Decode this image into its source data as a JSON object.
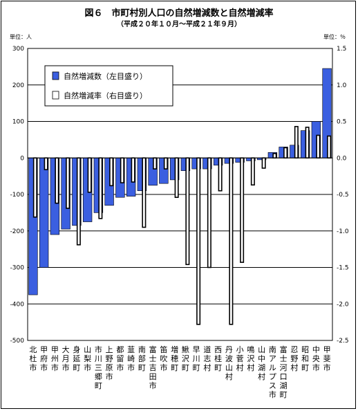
{
  "chart_data": {
    "type": "bar",
    "title": "図６　市町村別人口の自然増減数と自然増減率",
    "subtitle": "（平成２０年１０月～平成２１年９月）",
    "left_unit": "単位：人",
    "right_unit": "単位：％",
    "categories": [
      "北杜市",
      "甲府市",
      "甲州市",
      "大月市",
      "身延町",
      "山梨市",
      "市川三郷町",
      "上野原市",
      "都留市",
      "韮崎市",
      "南部町",
      "富士吉田市",
      "笛吹市",
      "増穂町",
      "鰍沢町",
      "早川町",
      "道志村",
      "西桂町",
      "丹波山村",
      "小菅村",
      "鳴沢村",
      "山中湖村",
      "南アルプス市",
      "富士河口湖町",
      "忍野村",
      "昭和町",
      "中央市",
      "甲斐市"
    ],
    "y_left": {
      "min": -500,
      "max": 300,
      "step": 100,
      "ticks": [
        "300",
        "200",
        "100",
        "0",
        "-100",
        "-200",
        "-300",
        "-400",
        "-500"
      ]
    },
    "y_right": {
      "min": -2.5,
      "max": 1.5,
      "step": 0.5,
      "ticks": [
        "1.5",
        "1.0",
        "0.5",
        "0.0",
        "-0.5",
        "-1.0",
        "-1.5",
        "-2.0",
        "-2.5"
      ]
    },
    "grid": true,
    "legend_position": "top-left",
    "series": [
      {
        "name": "自然増減数（左目盛り）",
        "axis": "left",
        "color": "#3b5fe0",
        "values": [
          -375,
          -300,
          -210,
          -195,
          -185,
          -175,
          -150,
          -130,
          -108,
          -105,
          -90,
          -75,
          -70,
          -60,
          -35,
          -30,
          -30,
          -20,
          -15,
          -12,
          -8,
          -5,
          15,
          30,
          35,
          75,
          100,
          245
        ]
      },
      {
        "name": "自然増減率（右目盛り）",
        "axis": "right",
        "color": "#ffffff",
        "values": [
          -0.81,
          -0.16,
          -0.62,
          -0.69,
          -1.19,
          -0.47,
          -0.83,
          -0.38,
          -0.34,
          -0.33,
          -0.95,
          -0.15,
          -0.15,
          -0.54,
          -1.46,
          -2.28,
          -1.5,
          -0.45,
          -2.28,
          -1.43,
          -0.37,
          -0.14,
          0.06,
          0.14,
          0.43,
          0.42,
          0.31,
          0.3
        ]
      }
    ]
  }
}
